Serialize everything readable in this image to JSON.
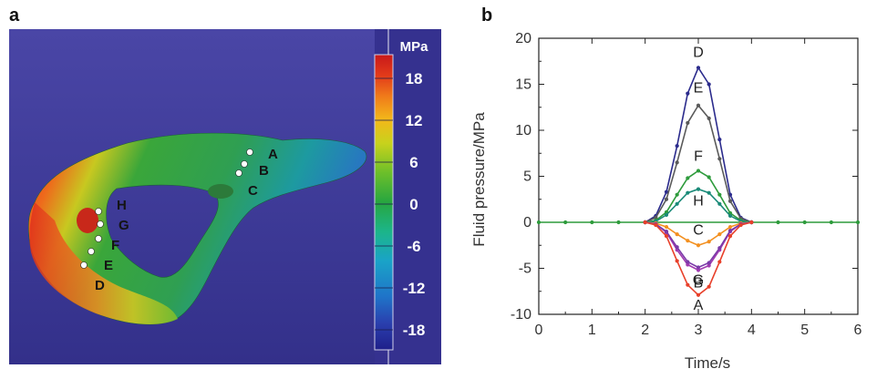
{
  "panel_a": {
    "letter": "a",
    "colorbar": {
      "unit": "MPa",
      "ticks": [
        "18",
        "12",
        "6",
        "0",
        "-6",
        "-12",
        "-18"
      ],
      "colors": [
        "#1f1f8a",
        "#2a3fae",
        "#1f74c9",
        "#1aa3c8",
        "#1cb58a",
        "#27a640",
        "#6cbf2a",
        "#c8d21c",
        "#f3b81a",
        "#f07a1a",
        "#e23a1a",
        "#c8181a"
      ]
    },
    "points": [
      "A",
      "B",
      "C",
      "D",
      "E",
      "F",
      "G",
      "H"
    ],
    "background_color": "#3e3a9a"
  },
  "chart_data": {
    "panel_letter": "b",
    "type": "line",
    "xlabel": "Time/s",
    "ylabel": "Fluid pressure/MPa",
    "xlim": [
      0,
      6
    ],
    "ylim": [
      -10,
      20
    ],
    "xticks": [
      "0",
      "1",
      "2",
      "3",
      "4",
      "5",
      "6"
    ],
    "yticks": [
      "-10",
      "-5",
      "0",
      "5",
      "10",
      "15",
      "20"
    ],
    "grid": false,
    "legend": "none",
    "baseline": {
      "color": "#2e9b3c",
      "x": [
        0,
        0.5,
        1.0,
        1.5,
        2.0,
        4.0,
        4.5,
        5.0,
        5.5,
        6.0
      ],
      "values": [
        0,
        0,
        0,
        0,
        0,
        0,
        0,
        0,
        0,
        0
      ]
    },
    "x": [
      2.0,
      2.2,
      2.4,
      2.6,
      2.8,
      3.0,
      3.2,
      3.4,
      3.6,
      3.8,
      4.0
    ],
    "series": [
      {
        "name": "D",
        "color": "#2b2b8c",
        "values": [
          0,
          0.7,
          3.3,
          8.3,
          14.0,
          16.8,
          15.0,
          9.0,
          3.0,
          0.5,
          0
        ]
      },
      {
        "name": "E",
        "color": "#5a5a5a",
        "values": [
          0,
          0.5,
          2.5,
          6.5,
          10.8,
          12.7,
          11.3,
          6.9,
          2.3,
          0.4,
          0
        ]
      },
      {
        "name": "F",
        "color": "#2e9b3c",
        "values": [
          0,
          0.2,
          1.1,
          3.0,
          4.8,
          5.6,
          4.9,
          3.0,
          1.0,
          0.2,
          0
        ]
      },
      {
        "name": "H",
        "color": "#1a8a78",
        "values": [
          0,
          0.1,
          0.8,
          2.0,
          3.2,
          3.6,
          3.2,
          2.0,
          0.7,
          0.1,
          0
        ]
      },
      {
        "name": "C",
        "color": "#f39020",
        "values": [
          0,
          -0.1,
          -0.5,
          -1.3,
          -2.0,
          -2.5,
          -2.1,
          -1.3,
          -0.5,
          -0.1,
          0
        ]
      },
      {
        "name": "G",
        "color": "#a03ab0",
        "values": [
          0,
          -0.2,
          -1.1,
          -3.0,
          -4.6,
          -5.2,
          -4.7,
          -3.0,
          -1.0,
          -0.2,
          0
        ]
      },
      {
        "name": "B",
        "color": "#7a3aa8",
        "values": [
          0,
          -0.2,
          -1.0,
          -2.7,
          -4.3,
          -4.9,
          -4.4,
          -2.8,
          -0.9,
          -0.2,
          0
        ]
      },
      {
        "name": "A",
        "color": "#e8402a",
        "values": [
          0,
          -0.3,
          -1.5,
          -4.2,
          -6.8,
          -7.9,
          -7.0,
          -4.3,
          -1.5,
          -0.3,
          0
        ]
      }
    ]
  }
}
